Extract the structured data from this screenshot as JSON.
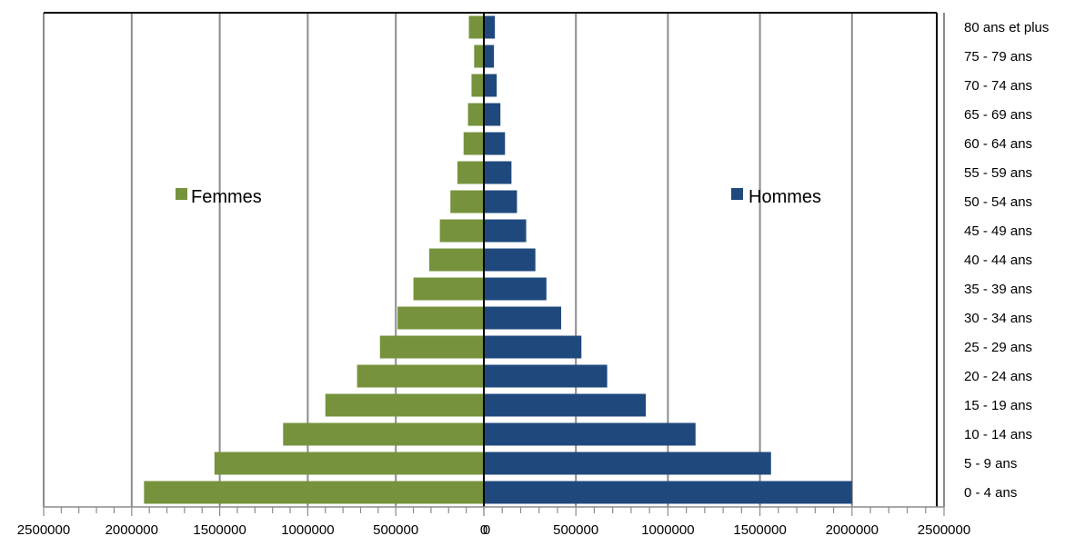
{
  "chart_data": [
    {
      "type": "bar",
      "orientation": "horizontal",
      "side": "left",
      "title": "",
      "xlabel": "",
      "ylabel": "",
      "xlim": [
        0,
        2500000
      ],
      "x_reversed": true,
      "grid": "vertical",
      "categories": [
        "0 - 4 ans",
        "5 - 9 ans",
        "10 - 14 ans",
        "15 - 19 ans",
        "20 - 24 ans",
        "25 - 29 ans",
        "30 - 34 ans",
        "35 - 39 ans",
        "40 - 44 ans",
        "45 - 49 ans",
        "50 - 54 ans",
        "55 - 59 ans",
        "60 - 64 ans",
        "65 - 69 ans",
        "70 - 74 ans",
        "75 - 79 ans",
        "80  ans et plus"
      ],
      "x_ticks": [
        "2500000",
        "2000000",
        "1500000",
        "1000000",
        "500000",
        "0"
      ],
      "series": [
        {
          "name": "Femmes",
          "color": "#76923c",
          "values": [
            1930000,
            1530000,
            1140000,
            900000,
            720000,
            590000,
            490000,
            400000,
            310000,
            250000,
            190000,
            150000,
            115000,
            90000,
            70000,
            55000,
            85000
          ]
        }
      ],
      "legend_position": "left"
    },
    {
      "type": "bar",
      "orientation": "horizontal",
      "side": "right",
      "title": "",
      "xlabel": "",
      "ylabel": "",
      "xlim": [
        0,
        2500000
      ],
      "grid": "vertical",
      "categories": [
        "0 - 4 ans",
        "5 - 9 ans",
        "10 - 14 ans",
        "15 - 19 ans",
        "20 - 24 ans",
        "25 - 29 ans",
        "30 - 34 ans",
        "35 - 39 ans",
        "40 - 44 ans",
        "45 - 49 ans",
        "50 - 54 ans",
        "55 - 59 ans",
        "60 - 64 ans",
        "65 - 69 ans",
        "70 - 74 ans",
        "75 - 79 ans",
        "80  ans et plus"
      ],
      "x_ticks": [
        "0",
        "500000",
        "1000000",
        "1500000",
        "2000000",
        "2500000"
      ],
      "series": [
        {
          "name": "Hommes",
          "color": "#1f497d",
          "values": [
            2000000,
            1560000,
            1150000,
            880000,
            670000,
            530000,
            420000,
            340000,
            280000,
            230000,
            180000,
            150000,
            115000,
            90000,
            70000,
            55000,
            60000
          ]
        }
      ],
      "legend_position": "right"
    }
  ]
}
